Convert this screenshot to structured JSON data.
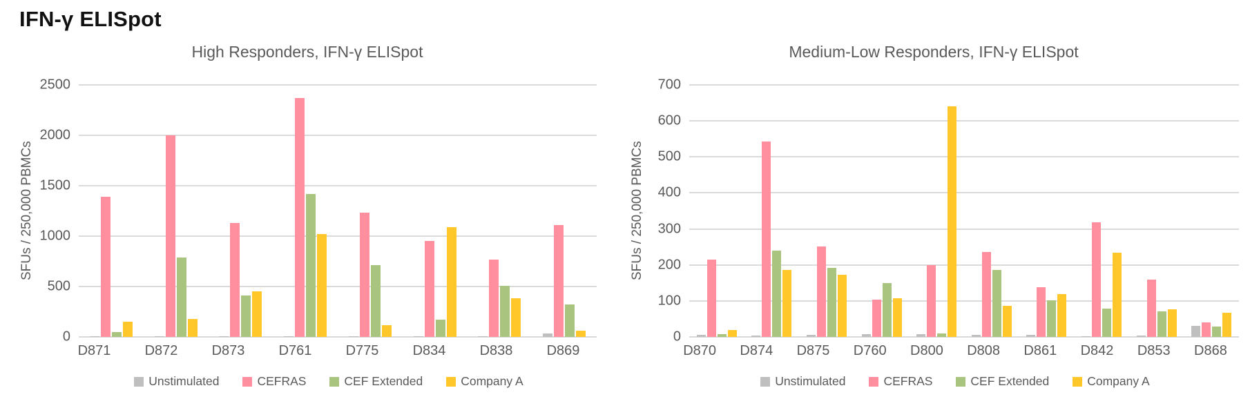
{
  "page": {
    "title": "IFN-γ ELISpot"
  },
  "colors": {
    "unstimulated": "#bfbfbf",
    "cefras": "#ff8f9e",
    "cef_extended": "#a9c47f",
    "company_a": "#ffc72a",
    "gridline": "#dadada",
    "axis_text": "#595959",
    "title_text": "#111111"
  },
  "chart_data": [
    {
      "type": "bar",
      "title": "High Responders, IFN-γ ELISpot",
      "xlabel": "",
      "ylabel": "SFUs / 250,000 PBMCs",
      "ylim": [
        0,
        2500
      ],
      "ytick_step": 500,
      "grid": true,
      "legend_position": "bottom",
      "categories": [
        "D871",
        "D872",
        "D873",
        "D761",
        "D775",
        "D834",
        "D838",
        "D869"
      ],
      "series": [
        {
          "name": "Unstimulated",
          "color": "#bfbfbf",
          "pattern": "dots",
          "values": [
            3,
            3,
            3,
            3,
            3,
            3,
            3,
            32
          ]
        },
        {
          "name": "CEFRAS",
          "color": "#ff8f9e",
          "pattern": "solid",
          "values": [
            1390,
            2000,
            1130,
            2370,
            1230,
            950,
            770,
            1110
          ]
        },
        {
          "name": "CEF Extended",
          "color": "#a9c47f",
          "pattern": "solid",
          "values": [
            45,
            790,
            410,
            1420,
            715,
            168,
            510,
            320
          ]
        },
        {
          "name": "Company A",
          "color": "#ffc72a",
          "pattern": "solid",
          "values": [
            148,
            175,
            450,
            1020,
            115,
            1090,
            385,
            60
          ]
        }
      ]
    },
    {
      "type": "bar",
      "title": "Medium-Low Responders, IFN-γ ELISpot",
      "xlabel": "",
      "ylabel": "SFUs / 250,000 PBMCs",
      "ylim": [
        0,
        700
      ],
      "ytick_step": 100,
      "grid": true,
      "legend_position": "bottom",
      "categories": [
        "D870",
        "D874",
        "D875",
        "D760",
        "D800",
        "D808",
        "D861",
        "D842",
        "D853",
        "D868"
      ],
      "series": [
        {
          "name": "Unstimulated",
          "color": "#bfbfbf",
          "pattern": "dots",
          "values": [
            5,
            4,
            5,
            8,
            7,
            5,
            5,
            2,
            3,
            30
          ]
        },
        {
          "name": "CEFRAS",
          "color": "#ff8f9e",
          "pattern": "solid",
          "values": [
            215,
            543,
            251,
            103,
            200,
            236,
            138,
            318,
            160,
            41
          ]
        },
        {
          "name": "CEF Extended",
          "color": "#a9c47f",
          "pattern": "solid",
          "values": [
            8,
            240,
            191,
            149,
            10,
            186,
            102,
            78,
            71,
            29
          ]
        },
        {
          "name": "Company A",
          "color": "#ffc72a",
          "pattern": "solid",
          "values": [
            20,
            186,
            172,
            107,
            640,
            86,
            119,
            234,
            77,
            68
          ]
        }
      ]
    }
  ]
}
